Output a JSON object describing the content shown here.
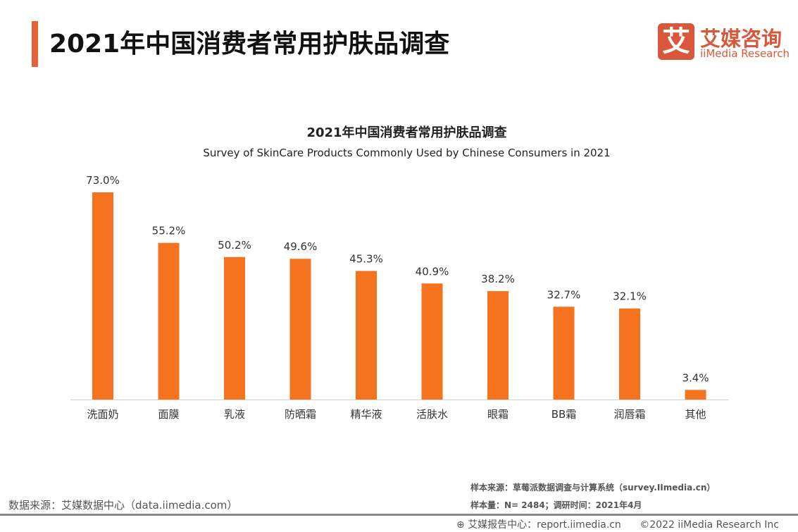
{
  "header": {
    "title": "2021年中国消费者常用护肤品调查",
    "logo_mark": "艾",
    "logo_cn": "艾媒咨询",
    "logo_en": "iiMedia Research"
  },
  "colors": {
    "bar": "#f5731e",
    "accent": "#e8603a",
    "brand": "#d9583b"
  },
  "chart_data": {
    "type": "bar",
    "title": "2021年中国消费者常用护肤品调查",
    "subtitle": "Survey of SkinCare Products Commonly Used by Chinese Consumers in 2021",
    "categories": [
      "洗面奶",
      "面膜",
      "乳液",
      "防晒霜",
      "精华液",
      "活肤水",
      "眼霜",
      "BB霜",
      "润唇霜",
      "其他"
    ],
    "values": [
      73.0,
      55.2,
      50.2,
      49.6,
      45.3,
      40.9,
      38.2,
      32.7,
      32.1,
      3.4
    ],
    "labels": [
      "73.0%",
      "55.2%",
      "50.2%",
      "49.6%",
      "45.3%",
      "40.9%",
      "38.2%",
      "32.7%",
      "32.1%",
      "3.4%"
    ],
    "ylim": [
      0,
      73
    ],
    "grid": false,
    "legend": "none"
  },
  "footer": {
    "source": "数据来源：艾媒数据中心（data.iimedia.com）",
    "sample_source": "样本来源：草莓派数据调查与计算系统（survey.IImedia.cn）",
    "sample_size": "样本量：N= 2484；调研时间：2021年4月",
    "report_center": "艾媒报告中心：report.iimedia.cn",
    "copyright": "©2022  iiMedia Research  Inc"
  }
}
